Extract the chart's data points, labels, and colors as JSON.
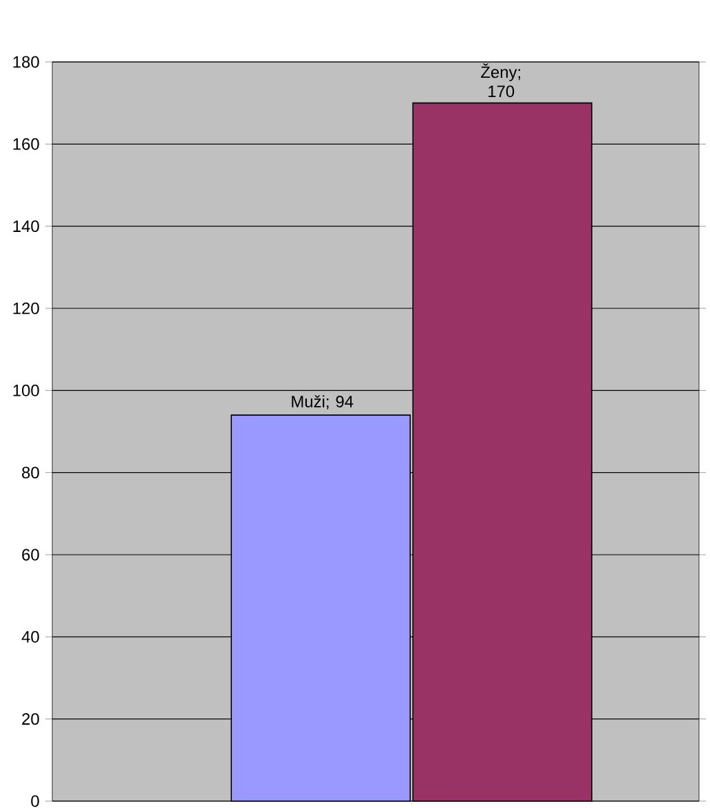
{
  "chart_data": {
    "type": "bar",
    "categories": [
      null
    ],
    "series": [
      {
        "color": "#9999ff",
        "values": [
          94
        ],
        "value_labels": [
          "Muži; 94"
        ]
      },
      {
        "color": "#993366",
        "values": [
          170
        ],
        "value_labels": [
          "Ženy; 170"
        ]
      }
    ],
    "ylim": [
      0,
      180
    ],
    "yticks": [
      0,
      20,
      40,
      60,
      80,
      100,
      120,
      140,
      160,
      180
    ],
    "grid": "y"
  }
}
